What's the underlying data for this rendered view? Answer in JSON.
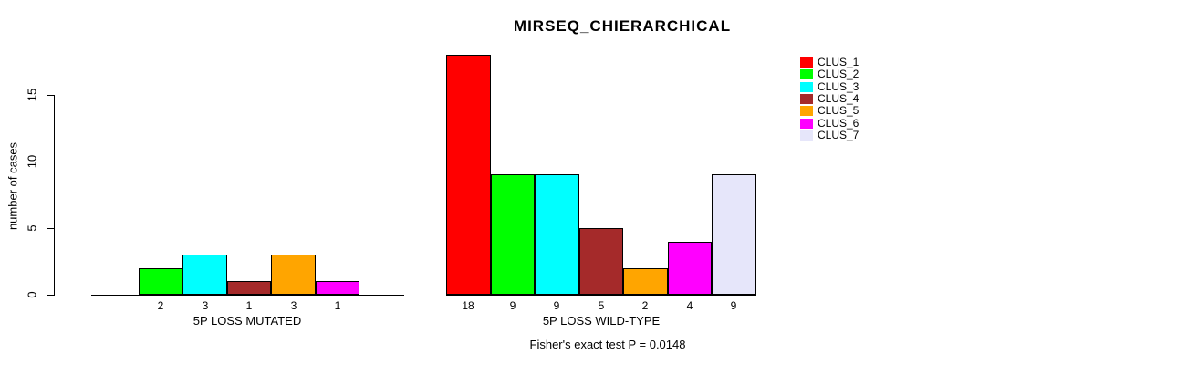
{
  "chart_data": {
    "type": "bar",
    "title": "MIRSEQ_CHIERARCHICAL",
    "ylabel": "number of cases",
    "ylim": [
      0,
      15
    ],
    "yticks": [
      0,
      5,
      10,
      15
    ],
    "grid": false,
    "footnote": "Fisher's exact test P = 0.0148",
    "legend": {
      "position": "right",
      "entries": [
        {
          "label": "CLUS_1",
          "color": "#FF0000"
        },
        {
          "label": "CLUS_2",
          "color": "#00FF00"
        },
        {
          "label": "CLUS_3",
          "color": "#00FFFF"
        },
        {
          "label": "CLUS_4",
          "color": "#A52A2A"
        },
        {
          "label": "CLUS_5",
          "color": "#FFA500"
        },
        {
          "label": "CLUS_6",
          "color": "#FF00FF"
        },
        {
          "label": "CLUS_7",
          "color": "#E6E6FA"
        }
      ]
    },
    "groups": [
      {
        "xlabel": "5P LOSS MUTATED",
        "bars": [
          {
            "cluster": "CLUS_2",
            "value": 2,
            "color": "#00FF00"
          },
          {
            "cluster": "CLUS_3",
            "value": 3,
            "color": "#00FFFF"
          },
          {
            "cluster": "CLUS_4",
            "value": 1,
            "color": "#A52A2A"
          },
          {
            "cluster": "CLUS_5",
            "value": 3,
            "color": "#FFA500"
          },
          {
            "cluster": "CLUS_6",
            "value": 1,
            "color": "#FF00FF"
          }
        ]
      },
      {
        "xlabel": "5P LOSS WILD-TYPE",
        "bars": [
          {
            "cluster": "CLUS_1",
            "value": 18,
            "color": "#FF0000"
          },
          {
            "cluster": "CLUS_2",
            "value": 9,
            "color": "#00FF00"
          },
          {
            "cluster": "CLUS_3",
            "value": 9,
            "color": "#00FFFF"
          },
          {
            "cluster": "CLUS_4",
            "value": 5,
            "color": "#A52A2A"
          },
          {
            "cluster": "CLUS_5",
            "value": 2,
            "color": "#FFA500"
          },
          {
            "cluster": "CLUS_6",
            "value": 4,
            "color": "#FF00FF"
          },
          {
            "cluster": "CLUS_7",
            "value": 9,
            "color": "#E6E6FA"
          }
        ]
      }
    ]
  }
}
